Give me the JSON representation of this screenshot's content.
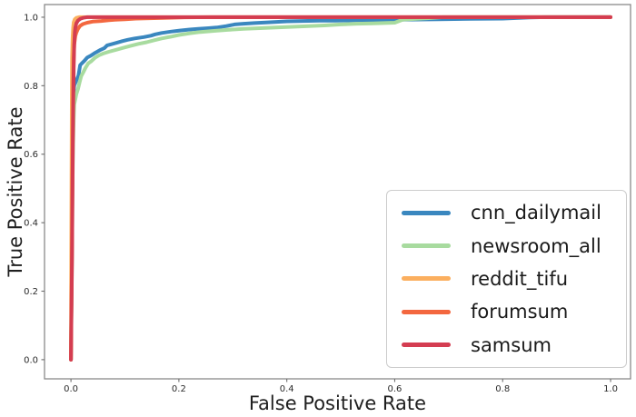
{
  "figure": {
    "background_color": "#ffffff"
  },
  "axes": {
    "spine_color": "#8a8a8a",
    "tick_color": "#6e6e6e",
    "tick_label_color": "#2b2b2b",
    "axis_label_color": "#1f1f1f",
    "x_tick_labels": [
      "0.0",
      "0.2",
      "0.4",
      "0.6",
      "0.8",
      "1.0"
    ],
    "y_tick_labels": [
      "0.0",
      "0.2",
      "0.4",
      "0.6",
      "0.8",
      "1.0"
    ],
    "x_tick_values": [
      0.0,
      0.2,
      0.4,
      0.6,
      0.8,
      1.0
    ],
    "y_tick_values": [
      0.0,
      0.2,
      0.4,
      0.6,
      0.8,
      1.0
    ]
  },
  "legend": {
    "border_color": "#cccccc",
    "position": "lower right"
  },
  "chart_data": {
    "type": "line",
    "title": "",
    "xlabel": "False Positive Rate",
    "ylabel": "True Positive Rate",
    "xlim": [
      -0.049,
      1.037
    ],
    "ylim": [
      -0.056,
      1.037
    ],
    "grid": false,
    "legend_position": "lower right",
    "line_width": 4,
    "series": [
      {
        "name": "cnn_dailymail",
        "color": "#3a87bf",
        "points": [
          [
            0,
            0
          ],
          [
            0.002,
            0.4
          ],
          [
            0.003,
            0.62
          ],
          [
            0.004,
            0.72
          ],
          [
            0.005,
            0.78
          ],
          [
            0.006,
            0.8
          ],
          [
            0.01,
            0.815
          ],
          [
            0.014,
            0.83
          ],
          [
            0.017,
            0.86
          ],
          [
            0.02,
            0.865
          ],
          [
            0.025,
            0.873
          ],
          [
            0.03,
            0.882
          ],
          [
            0.037,
            0.888
          ],
          [
            0.045,
            0.896
          ],
          [
            0.055,
            0.905
          ],
          [
            0.062,
            0.91
          ],
          [
            0.067,
            0.918
          ],
          [
            0.075,
            0.921
          ],
          [
            0.084,
            0.925
          ],
          [
            0.095,
            0.93
          ],
          [
            0.105,
            0.934
          ],
          [
            0.118,
            0.938
          ],
          [
            0.135,
            0.942
          ],
          [
            0.148,
            0.946
          ],
          [
            0.156,
            0.95
          ],
          [
            0.168,
            0.954
          ],
          [
            0.185,
            0.958
          ],
          [
            0.202,
            0.961
          ],
          [
            0.22,
            0.964
          ],
          [
            0.236,
            0.966
          ],
          [
            0.255,
            0.968
          ],
          [
            0.27,
            0.97
          ],
          [
            0.288,
            0.974
          ],
          [
            0.303,
            0.979
          ],
          [
            0.32,
            0.981
          ],
          [
            0.34,
            0.983
          ],
          [
            0.365,
            0.985
          ],
          [
            0.4,
            0.988
          ],
          [
            0.43,
            0.989
          ],
          [
            0.46,
            0.99
          ],
          [
            0.49,
            0.99
          ],
          [
            0.53,
            0.991
          ],
          [
            0.57,
            0.992
          ],
          [
            0.62,
            0.993
          ],
          [
            0.68,
            0.994
          ],
          [
            0.74,
            0.995
          ],
          [
            0.8,
            0.996
          ],
          [
            0.85,
            0.999
          ],
          [
            0.88,
            1.0
          ],
          [
            1.0,
            1.0
          ]
        ]
      },
      {
        "name": "newsroom_all",
        "color": "#a8db9f",
        "points": [
          [
            0,
            0
          ],
          [
            0.002,
            0.3
          ],
          [
            0.003,
            0.52
          ],
          [
            0.004,
            0.63
          ],
          [
            0.005,
            0.7
          ],
          [
            0.006,
            0.745
          ],
          [
            0.008,
            0.76
          ],
          [
            0.01,
            0.775
          ],
          [
            0.013,
            0.79
          ],
          [
            0.016,
            0.81
          ],
          [
            0.019,
            0.828
          ],
          [
            0.023,
            0.84
          ],
          [
            0.027,
            0.852
          ],
          [
            0.032,
            0.865
          ],
          [
            0.038,
            0.872
          ],
          [
            0.045,
            0.882
          ],
          [
            0.052,
            0.889
          ],
          [
            0.06,
            0.894
          ],
          [
            0.07,
            0.899
          ],
          [
            0.082,
            0.904
          ],
          [
            0.095,
            0.91
          ],
          [
            0.11,
            0.916
          ],
          [
            0.125,
            0.922
          ],
          [
            0.14,
            0.927
          ],
          [
            0.155,
            0.933
          ],
          [
            0.168,
            0.938
          ],
          [
            0.185,
            0.943
          ],
          [
            0.2,
            0.948
          ],
          [
            0.22,
            0.953
          ],
          [
            0.24,
            0.957
          ],
          [
            0.265,
            0.96
          ],
          [
            0.29,
            0.963
          ],
          [
            0.32,
            0.966
          ],
          [
            0.35,
            0.968
          ],
          [
            0.38,
            0.97
          ],
          [
            0.41,
            0.972
          ],
          [
            0.44,
            0.974
          ],
          [
            0.47,
            0.976
          ],
          [
            0.5,
            0.979
          ],
          [
            0.53,
            0.981
          ],
          [
            0.56,
            0.982
          ],
          [
            0.6,
            0.984
          ],
          [
            0.615,
            0.993
          ],
          [
            0.64,
            0.995
          ],
          [
            0.66,
            0.997
          ],
          [
            0.69,
            1.0
          ],
          [
            1.0,
            1.0
          ]
        ]
      },
      {
        "name": "reddit_tifu",
        "color": "#fbaf5f",
        "points": [
          [
            0,
            0
          ],
          [
            0.0005,
            0.3
          ],
          [
            0.001,
            0.54
          ],
          [
            0.0015,
            0.75
          ],
          [
            0.002,
            0.88
          ],
          [
            0.003,
            0.94
          ],
          [
            0.004,
            0.97
          ],
          [
            0.005,
            0.985
          ],
          [
            0.007,
            0.994
          ],
          [
            0.01,
            0.998
          ],
          [
            0.015,
            1.0
          ],
          [
            1.0,
            1.0
          ]
        ]
      },
      {
        "name": "forumsum",
        "color": "#f3673f",
        "points": [
          [
            0,
            0
          ],
          [
            0.002,
            0.35
          ],
          [
            0.003,
            0.6
          ],
          [
            0.004,
            0.78
          ],
          [
            0.005,
            0.88
          ],
          [
            0.006,
            0.92
          ],
          [
            0.008,
            0.945
          ],
          [
            0.01,
            0.955
          ],
          [
            0.013,
            0.966
          ],
          [
            0.017,
            0.975
          ],
          [
            0.022,
            0.98
          ],
          [
            0.03,
            0.984
          ],
          [
            0.04,
            0.987
          ],
          [
            0.056,
            0.989
          ],
          [
            0.07,
            0.991
          ],
          [
            0.085,
            0.993
          ],
          [
            0.1,
            0.994
          ],
          [
            0.12,
            0.996
          ],
          [
            0.145,
            0.997
          ],
          [
            0.17,
            0.998
          ],
          [
            0.21,
            0.9995
          ],
          [
            0.26,
            1.0
          ],
          [
            1.0,
            1.0
          ]
        ]
      },
      {
        "name": "samsum",
        "color": "#d43d51",
        "points": [
          [
            0,
            0
          ],
          [
            0.002,
            0.3
          ],
          [
            0.003,
            0.54
          ],
          [
            0.004,
            0.72
          ],
          [
            0.005,
            0.85
          ],
          [
            0.006,
            0.92
          ],
          [
            0.007,
            0.955
          ],
          [
            0.008,
            0.97
          ],
          [
            0.01,
            0.982
          ],
          [
            0.013,
            0.99
          ],
          [
            0.017,
            0.995
          ],
          [
            0.022,
            0.998
          ],
          [
            0.03,
            1.0
          ],
          [
            1.0,
            1.0
          ]
        ]
      }
    ]
  }
}
